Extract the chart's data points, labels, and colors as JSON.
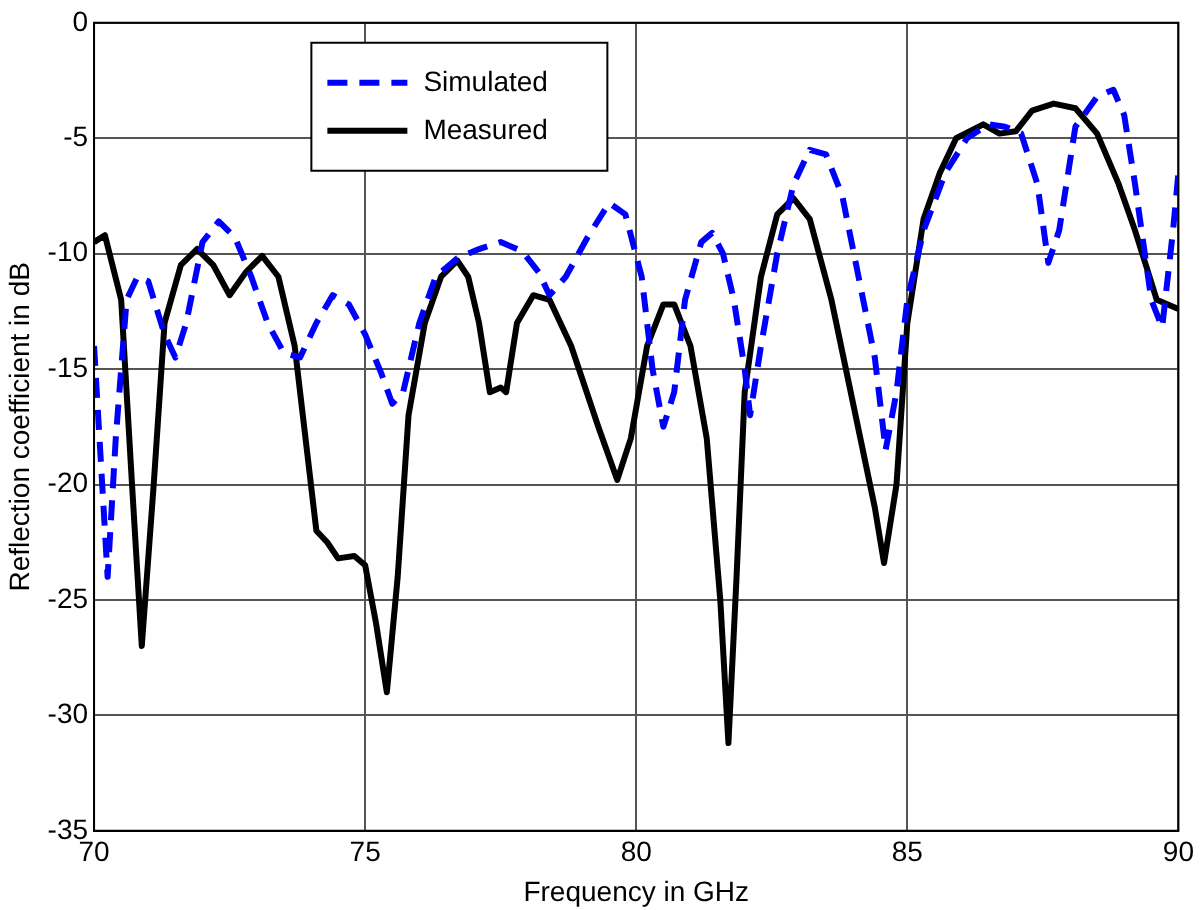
{
  "chart_data": {
    "type": "line",
    "xlabel": "Frequency in GHz",
    "ylabel": "Reflection coefficient in dB",
    "xlim": [
      70,
      90
    ],
    "xticks": [
      70,
      75,
      80,
      85,
      90
    ],
    "ylim": [
      -35,
      0
    ],
    "yticks": [
      -35,
      -30,
      -25,
      -20,
      -15,
      -10,
      -5,
      0
    ],
    "grid": true,
    "legend": "top",
    "marker": "none",
    "series": [
      {
        "name": "Simulated",
        "color": "#0000ff",
        "line_style": "dashed",
        "x": [
          70.0,
          70.15,
          70.25,
          70.4,
          70.6,
          70.8,
          71.0,
          71.3,
          71.5,
          71.7,
          72.0,
          72.3,
          72.6,
          72.9,
          73.2,
          73.5,
          73.8,
          74.1,
          74.4,
          74.7,
          75.0,
          75.3,
          75.5,
          75.7,
          76.0,
          76.3,
          76.7,
          77.1,
          77.5,
          77.9,
          78.2,
          78.4,
          78.7,
          79.1,
          79.5,
          79.8,
          80.1,
          80.3,
          80.5,
          80.7,
          80.9,
          81.2,
          81.4,
          81.6,
          81.8,
          82.0,
          82.1,
          82.3,
          82.6,
          82.9,
          83.2,
          83.5,
          83.8,
          84.1,
          84.4,
          84.6,
          84.8,
          85.0,
          85.3,
          85.7,
          86.1,
          86.5,
          86.8,
          87.1,
          87.4,
          87.6,
          87.8,
          88.1,
          88.5,
          88.8,
          89.0,
          89.2,
          89.5,
          89.7,
          89.9,
          90.0
        ],
        "values": [
          -14,
          -20,
          -24,
          -18,
          -12,
          -11,
          -11.2,
          -13.5,
          -14.5,
          -13,
          -9.5,
          -8.6,
          -9.3,
          -11,
          -13,
          -14.3,
          -14.5,
          -13,
          -11.8,
          -12.2,
          -13.5,
          -15.2,
          -16.5,
          -16,
          -13,
          -11,
          -10.2,
          -9.8,
          -9.5,
          -9.9,
          -10.8,
          -11.8,
          -11,
          -9.3,
          -7.8,
          -8.3,
          -11,
          -15,
          -17.5,
          -16,
          -12,
          -9.5,
          -9.1,
          -10,
          -12,
          -15,
          -17,
          -14,
          -10,
          -7,
          -5.5,
          -5.7,
          -7.5,
          -11,
          -14.5,
          -18.5,
          -16,
          -12,
          -9,
          -6.5,
          -5,
          -4.4,
          -4.5,
          -4.8,
          -7,
          -10.4,
          -9,
          -4.5,
          -3.2,
          -2.9,
          -4,
          -7,
          -12,
          -13.2,
          -9,
          -6.5
        ]
      },
      {
        "name": "Measured",
        "color": "#000000",
        "line_style": "solid",
        "x": [
          70.0,
          70.2,
          70.5,
          70.7,
          70.88,
          71.1,
          71.3,
          71.6,
          71.9,
          72.2,
          72.5,
          72.8,
          73.1,
          73.4,
          73.7,
          73.9,
          74.1,
          74.3,
          74.5,
          74.8,
          75.0,
          75.2,
          75.4,
          75.6,
          75.8,
          76.1,
          76.4,
          76.7,
          76.9,
          77.1,
          77.3,
          77.5,
          77.6,
          77.8,
          78.1,
          78.4,
          78.8,
          79.3,
          79.65,
          79.9,
          80.2,
          80.5,
          80.7,
          81.0,
          81.3,
          81.55,
          81.7,
          81.85,
          82.0,
          82.3,
          82.6,
          82.9,
          83.2,
          83.6,
          84.0,
          84.4,
          84.57,
          84.8,
          85.0,
          85.3,
          85.6,
          85.9,
          86.4,
          86.7,
          87.0,
          87.3,
          87.7,
          88.1,
          88.5,
          88.9,
          89.2,
          89.4,
          89.6,
          90.0
        ],
        "values": [
          -9.5,
          -9.2,
          -12,
          -20,
          -27,
          -20,
          -13,
          -10.5,
          -9.8,
          -10.5,
          -11.8,
          -10.8,
          -10.1,
          -11,
          -14,
          -18,
          -22,
          -22.5,
          -23.2,
          -23.1,
          -23.5,
          -26,
          -29,
          -24,
          -17,
          -13,
          -11,
          -10.3,
          -11,
          -13,
          -16,
          -15.8,
          -16,
          -13,
          -11.8,
          -12,
          -14,
          -17.5,
          -19.8,
          -18,
          -14,
          -12.2,
          -12.2,
          -14,
          -18,
          -25,
          -31.2,
          -24,
          -16,
          -11,
          -8.3,
          -7.6,
          -8.5,
          -12,
          -16.5,
          -21,
          -23.4,
          -20,
          -13,
          -8.5,
          -6.5,
          -5,
          -4.4,
          -4.8,
          -4.7,
          -3.8,
          -3.5,
          -3.7,
          -4.8,
          -7,
          -9,
          -10.5,
          -12,
          -12.4
        ]
      }
    ]
  }
}
